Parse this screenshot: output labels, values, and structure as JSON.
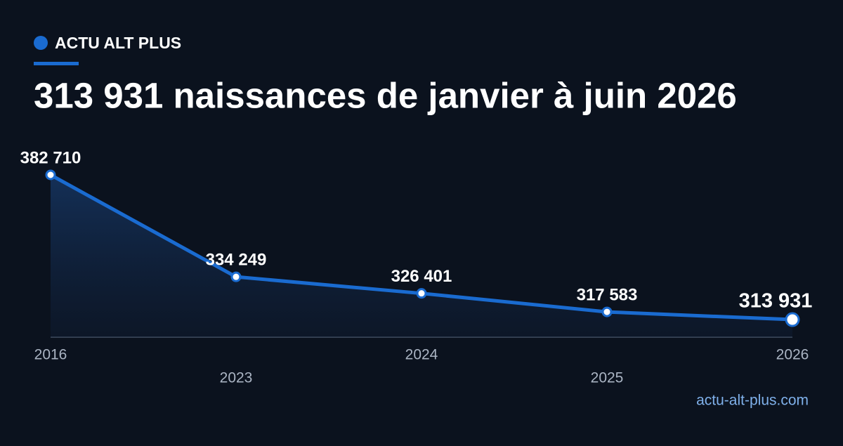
{
  "brand": "ACTU ALT PLUS",
  "footer": "actu-alt-plus.com",
  "chart_data": {
    "type": "area-line",
    "title": "313 931 naissances de janvier à juin 2026",
    "categories": [
      "2016",
      "2023",
      "2024",
      "2025",
      "2026"
    ],
    "values": [
      382710,
      334249,
      326401,
      317583,
      313931
    ],
    "value_labels": [
      "382 710",
      "334 249",
      "326 401",
      "317 583",
      "313 931"
    ],
    "color": "#1a6bd0",
    "ylim": [
      305600,
      382710
    ]
  }
}
